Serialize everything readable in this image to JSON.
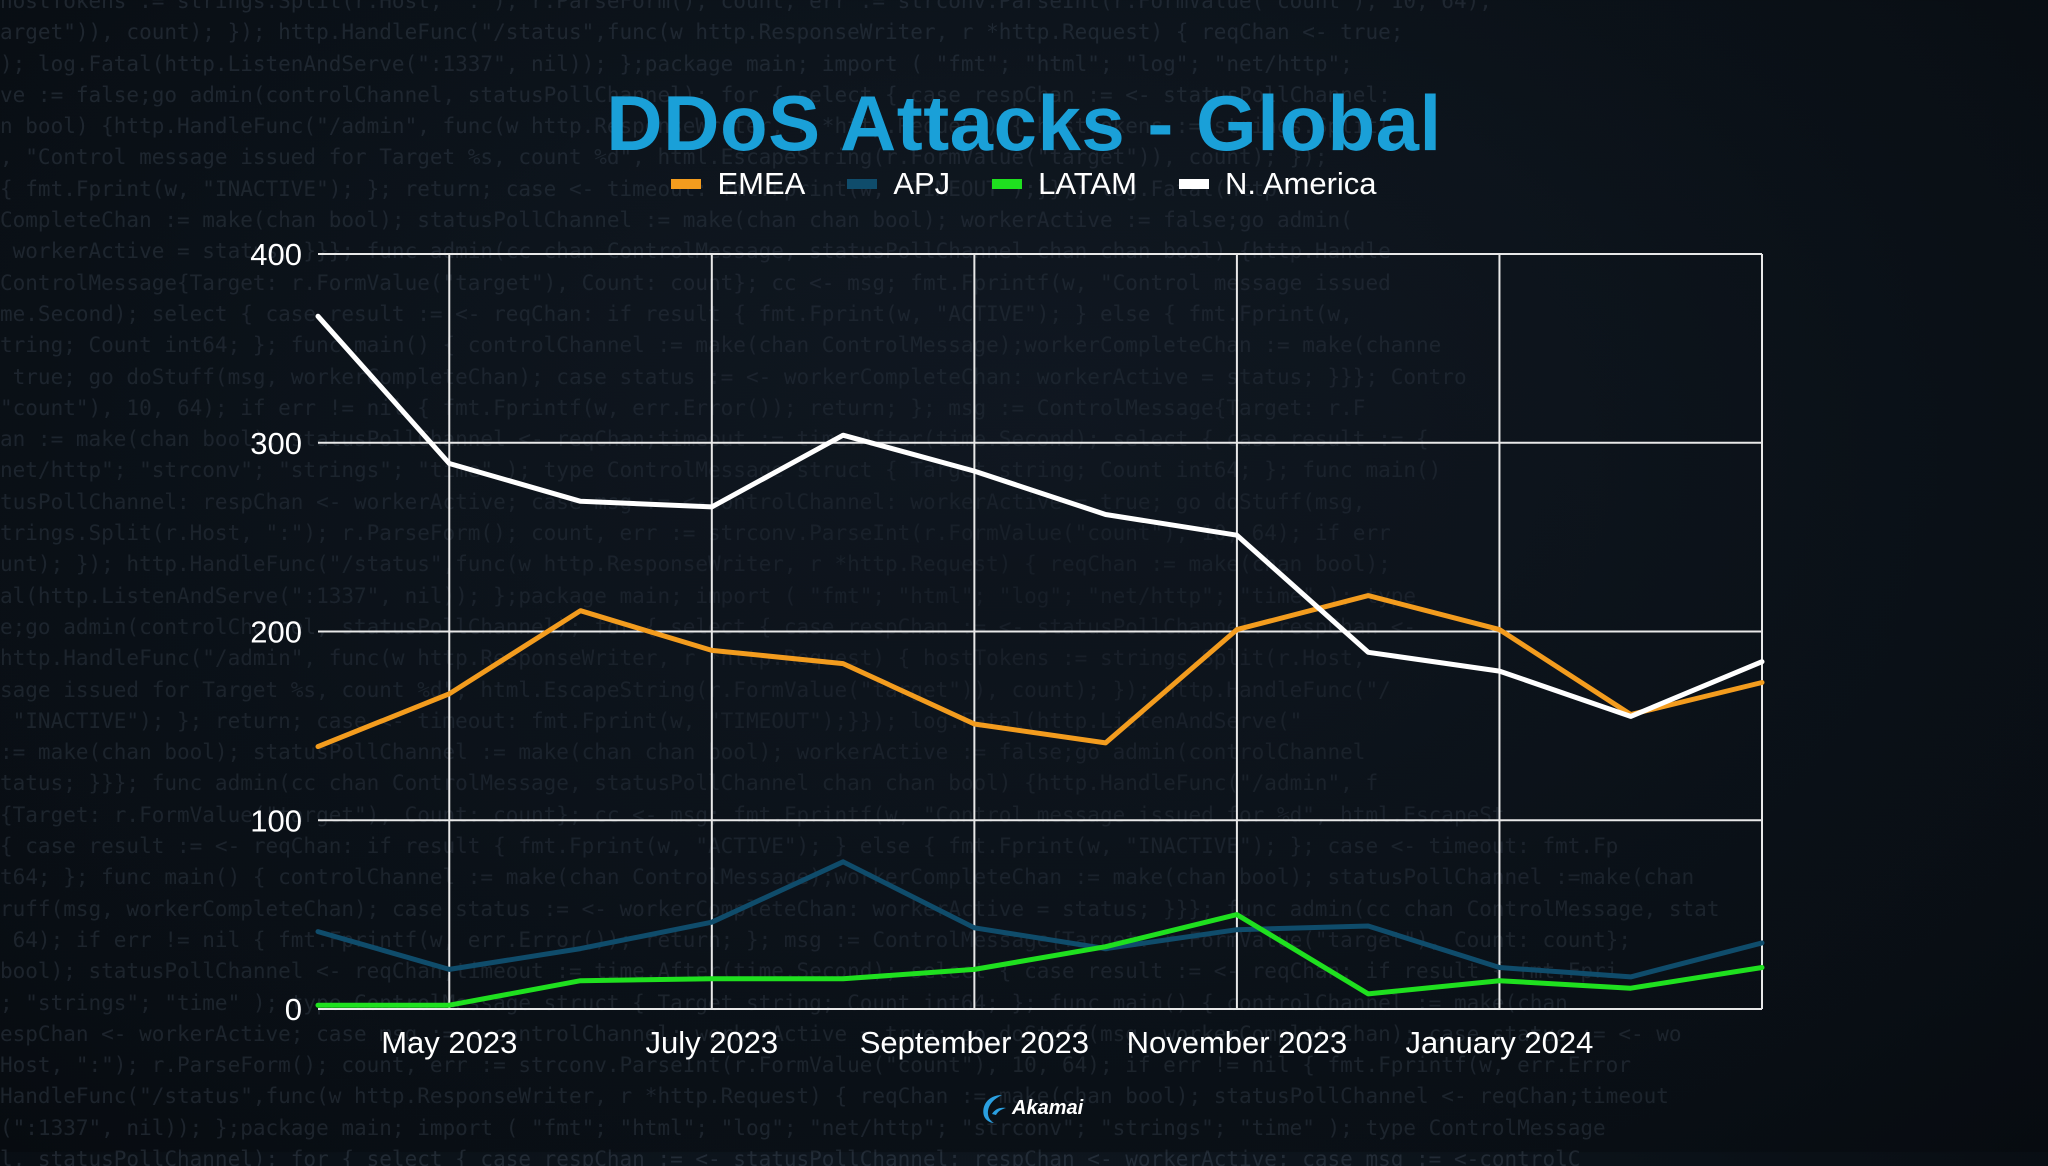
{
  "background_code": [
    "hostTokens := strings.Split(r.Host, \":\"); r.ParseForm(); count, err := strconv.ParseInt(r.FormValue(\"count\"), 10, 64);",
    "arget\")), count); }); http.HandleFunc(\"/status\",func(w http.ResponseWriter, r *http.Request) { reqChan <- true;",
    "); log.Fatal(http.ListenAndServe(\":1337\", nil)); };package main; import ( \"fmt\"; \"html\"; \"log\"; \"net/http\";",
    "ve := false;go admin(controlChannel, statusPollChannel); for { select { case respChan := <- statusPollChannel:",
    "n bool) {http.HandleFunc(\"/admin\", func(w http.ResponseWriter, r *http.Request) { hostTokens := strings.Split(",
    ", \"Control message issued for Target %s, count %d\", html.EscapeString(r.FormValue(\"target\")), count); });",
    "{ fmt.Fprint(w, \"INACTIVE\"); }; return; case <- timeout: fmt.Fprint(w, \"TIMEOUT\");}}); log.Fatal(http.",
    "CompleteChan := make(chan bool); statusPollChannel := make(chan chan bool); workerActive := false;go admin(",
    " workerActive = status; }}}; func admin(cc chan ControlMessage, statusPollChannel chan chan bool) {http.Handle",
    "ControlMessage{Target: r.FormValue(\"target\"), Count: count}; cc <- msg; fmt.Fprintf(w, \"Control message issued",
    "me.Second); select { case result := <- reqChan: if result { fmt.Fprint(w, \"ACTIVE\"); } else { fmt.Fprint(w,",
    "tring; Count int64; }; func main() { controlChannel := make(chan ControlMessage);workerCompleteChan := make(channe",
    " true; go doStuff(msg, workerCompleteChan); case status := <- workerCompleteChan: workerActive = status; }}}; Contro",
    "\"count\"), 10, 64); if err != nil { fmt.Fprintf(w, err.Error()); return; }; msg := ControlMessage{Target: r.F",
    "an := make(chan bool); statusPollChannel <- reqChan;timeout := time.After(time.Second); select { case result := {",
    "net/http\"; \"strconv\"; \"strings\"; \"time\" ); type ControlMessage struct { Target string; Count int64; }; func main()",
    "tusPollChannel: respChan <- workerActive; case msg := <-controlChannel: workerActive = true; go doStuff(msg,",
    "trings.Split(r.Host, \":\"); r.ParseForm(); count, err := strconv.ParseInt(r.FormValue(\"count\"), 10, 64); if err",
    "unt); }); http.HandleFunc(\"/status\",func(w http.ResponseWriter, r *http.Request) { reqChan := make(chan bool);",
    "al(http.ListenAndServe(\":1337\", nil)); };package main; import ( \"fmt\"; \"html\"; \"log\"; \"net/http\"; \"time\" ); type",
    "e;go admin(controlChannel, statusPollChannel); for { select { case respChan := <- statusPollChannel: respChan <-",
    "http.HandleFunc(\"/admin\", func(w http.ResponseWriter, r *http.Request) { hostTokens := strings.Split(r.Host,",
    "sage issued for Target %s, count %d\", html.EscapeString(r.FormValue(\"target\")), count); }); http.HandleFunc(\"/",
    " \"INACTIVE\"); }; return; case <- timeout: fmt.Fprint(w, \"TIMEOUT\");}}); log.Fatal(http.ListenAndServe(\"",
    ":= make(chan bool); statusPollChannel := make(chan chan bool); workerActive := false;go admin(controlChannel",
    "tatus; }}}; func admin(cc chan ControlMessage, statusPollChannel chan chan bool) {http.HandleFunc(\"/admin\", f",
    "{Target: r.FormValue(\"target\"), Count: count}; cc <- msg; fmt.Fprintf(w, \"Control message issued for %d\", html.EscapeSt",
    "{ case result := <- reqChan: if result { fmt.Fprint(w, \"ACTIVE\"); } else { fmt.Fprint(w, \"INACTIVE\"); }; case <- timeout: fmt.Fp",
    "t64; }; func main() { controlChannel := make(chan ControlMessage);workerCompleteChan := make(chan bool); statusPollChannel :=make(chan",
    "ruff(msg, workerCompleteChan); case status := <- workerCompleteChan: workerActive = status; }}}; func admin(cc chan ControlMessage, stat",
    " 64); if err != nil { fmt.Fprintf(w, err.Error()); return; }; msg := ControlMessage{Target: r.FormValue(\"target\"), Count: count};",
    "bool); statusPollChannel <- reqChan;timeout := time.After(time.Second); select { case result := <- reqChan: if result { fmt.Fpri",
    "; \"strings\"; \"time\" ); type ControlMessage struct { Target string; Count int64; }; func main() { controlChannel := make(chan",
    "espChan <- workerActive; case msg := <-controlChannel: workerActive = true; go doStuff(msg, workerCompleteChan); case status := <- wo",
    "Host, \":\"); r.ParseForm(); count, err := strconv.ParseInt(r.FormValue(\"count\"), 10, 64); if err != nil { fmt.Fprintf(w, err.Error",
    "HandleFunc(\"/status\",func(w http.ResponseWriter, r *http.Request) { reqChan := make(chan bool); statusPollChannel <- reqChan;timeout",
    "(\":1337\", nil)); };package main; import ( \"fmt\"; \"html\"; \"log\"; \"net/http\"; \"strconv\"; \"strings\"; \"time\" ); type ControlMessage",
    "l, statusPollChannel); for { select { case respChan := <- statusPollChannel: respChan <- workerActive; case msg := <-controlC"
  ],
  "logo": {
    "text": "Akamai"
  },
  "colors": {
    "title": "#1aa0d8",
    "grid": "#e8e8e8",
    "EMEA": "#f39c1e",
    "APJ": "#0f4c6b",
    "LATAM": "#1fe01f",
    "N. America": "#ffffff"
  },
  "chart_data": {
    "type": "line",
    "title": "DDoS Attacks - Global",
    "xlabel": "",
    "ylabel": "",
    "ylim": [
      0,
      400
    ],
    "yticks": [
      0,
      100,
      200,
      300,
      400
    ],
    "x": [
      "2023-04",
      "2023-05",
      "2023-06",
      "2023-07",
      "2023-08",
      "2023-09",
      "2023-10",
      "2023-11",
      "2023-12",
      "2024-01",
      "2024-02",
      "2024-03"
    ],
    "x_tick_labels": [
      {
        "x": "2023-05",
        "label": "May 2023"
      },
      {
        "x": "2023-07",
        "label": "July 2023"
      },
      {
        "x": "2023-09",
        "label": "September 2023"
      },
      {
        "x": "2023-11",
        "label": "November 2023"
      },
      {
        "x": "2024-01",
        "label": "January 2024"
      }
    ],
    "legend": "top-center",
    "grid": true,
    "series": [
      {
        "name": "EMEA",
        "values": [
          139,
          167,
          211,
          190,
          183,
          151,
          141,
          201,
          219,
          201,
          156,
          173
        ]
      },
      {
        "name": "APJ",
        "values": [
          41,
          21,
          32,
          46,
          78,
          43,
          32,
          42,
          44,
          22,
          17,
          35
        ]
      },
      {
        "name": "LATAM",
        "values": [
          2,
          2,
          15,
          16,
          16,
          21,
          33,
          50,
          8,
          15,
          11,
          22
        ]
      },
      {
        "name": "N. America",
        "values": [
          367,
          289,
          269,
          266,
          304,
          285,
          262,
          251,
          189,
          179,
          155,
          184
        ]
      }
    ]
  }
}
